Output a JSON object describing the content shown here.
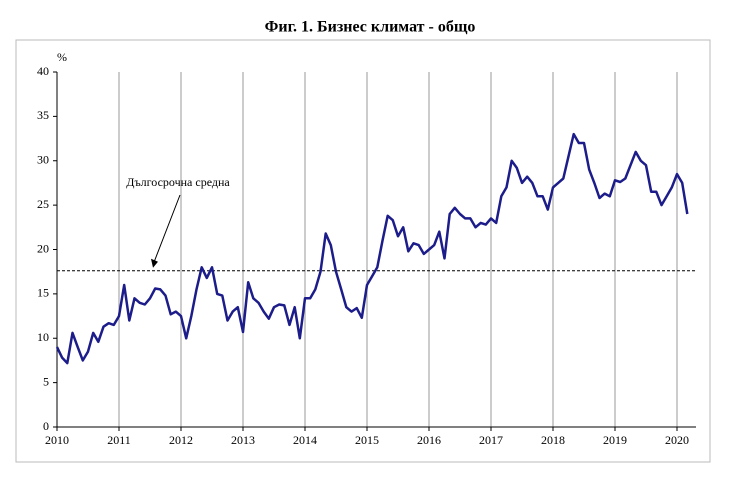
{
  "chart_data": {
    "type": "line",
    "title": "Фиг. 1. Бизнес климат - общо",
    "y_unit": "%",
    "categories": [
      "2010",
      null,
      null,
      null,
      null,
      null,
      null,
      null,
      null,
      null,
      null,
      null,
      "2011",
      null,
      null,
      null,
      null,
      null,
      null,
      null,
      null,
      null,
      null,
      null,
      "2012",
      null,
      null,
      null,
      null,
      null,
      null,
      null,
      null,
      null,
      null,
      null,
      "2013",
      null,
      null,
      null,
      null,
      null,
      null,
      null,
      null,
      null,
      null,
      null,
      "2014",
      null,
      null,
      null,
      null,
      null,
      null,
      null,
      null,
      null,
      null,
      null,
      "2015",
      null,
      null,
      null,
      null,
      null,
      null,
      null,
      null,
      null,
      null,
      null,
      "2016",
      null,
      null,
      null,
      null,
      null,
      null,
      null,
      null,
      null,
      null,
      null,
      "2017",
      null,
      null,
      null,
      null,
      null,
      null,
      null,
      null,
      null,
      null,
      null,
      "2018",
      null,
      null,
      null,
      null,
      null,
      null,
      null,
      null,
      null,
      null,
      null,
      "2019",
      null,
      null,
      null,
      null,
      null,
      null,
      null,
      null,
      null,
      null,
      null,
      "2020",
      null,
      null
    ],
    "series": [
      {
        "color": "#1c1c8a",
        "values": [
          9.0,
          7.8,
          7.2,
          10.6,
          9.0,
          7.5,
          8.5,
          10.6,
          9.6,
          11.3,
          11.7,
          11.5,
          12.5,
          16.0,
          12.0,
          14.5,
          14.0,
          13.8,
          14.5,
          15.6,
          15.5,
          14.8,
          12.7,
          13.0,
          12.5,
          10.0,
          12.5,
          15.5,
          18.0,
          16.8,
          18.0,
          15.0,
          14.8,
          12.0,
          13.0,
          13.5,
          10.7,
          16.3,
          14.5,
          14.0,
          13.0,
          12.2,
          13.5,
          13.8,
          13.7,
          11.5,
          13.5,
          10.0,
          14.5,
          14.5,
          15.5,
          17.5,
          21.8,
          20.5,
          17.5,
          15.5,
          13.5,
          13.0,
          13.4,
          12.3,
          16.0,
          17.0,
          18.0,
          21.0,
          23.8,
          23.3,
          21.5,
          22.5,
          19.8,
          20.7,
          20.5,
          19.5,
          20.0,
          20.5,
          22.0,
          19.0,
          24.0,
          24.7,
          24.0,
          23.5,
          23.5,
          22.5,
          23.0,
          22.8,
          23.5,
          23.0,
          26.0,
          27.0,
          30.0,
          29.2,
          27.5,
          28.2,
          27.5,
          26.0,
          26.0,
          24.5,
          27.0,
          27.5,
          28.0,
          30.5,
          33.0,
          32.0,
          32.0,
          29.0,
          27.5,
          25.8,
          26.3,
          26.0,
          27.8,
          27.6,
          28.0,
          29.5,
          31.0,
          30.0,
          29.5,
          26.5,
          26.5,
          25.0,
          26.0,
          27.0,
          28.5,
          27.5,
          24.0
        ]
      }
    ],
    "reference_line": {
      "value": 17.6,
      "label": "Дългосрочна средна"
    },
    "ylim": [
      0,
      40
    ],
    "yticks": [
      0,
      5,
      10,
      15,
      20,
      25,
      30,
      35,
      40
    ],
    "grid": "x"
  }
}
